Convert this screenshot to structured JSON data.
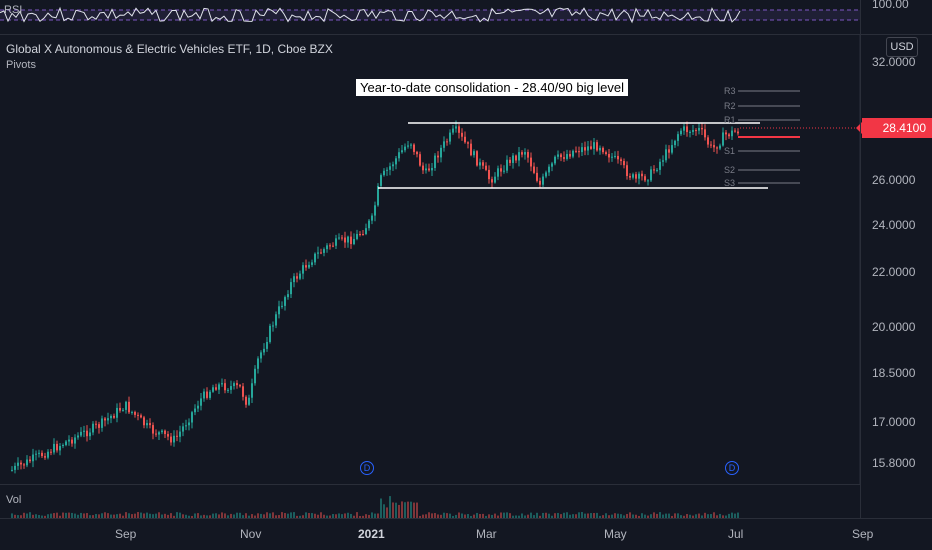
{
  "header": {
    "rsi_label": "RSI",
    "rsi_axis_label": "100.00",
    "symbol_title": "Global X Autonomous & Electric Vehicles ETF, 1D, Cboe BZX",
    "pivots_label": "Pivots",
    "currency_button": "USD"
  },
  "annotation": {
    "text": "Year-to-date consolidation - 28.40/90 big level"
  },
  "price_axis": {
    "ticks": [
      "32.0000",
      "26.0000",
      "24.0000",
      "22.0000",
      "20.0000",
      "18.5000",
      "17.0000",
      "15.8000"
    ],
    "current_price": "28.4100"
  },
  "pivot_levels": {
    "labels": [
      "R3",
      "R2",
      "R1",
      "P",
      "S1",
      "S2",
      "S3"
    ]
  },
  "dividend_markers": [
    "D",
    "D"
  ],
  "volume": {
    "label": "Vol"
  },
  "time_axis": {
    "labels": [
      "Sep",
      "Nov",
      "2021",
      "Mar",
      "May",
      "Jul",
      "Sep"
    ]
  },
  "colors": {
    "background": "#131722",
    "up_candle": "#26a69a",
    "down_candle": "#ef5350",
    "current_price_line": "#f23645",
    "rsi_line": "#e0e3eb",
    "rsi_band": "#7e57c2",
    "dividend_marker": "#2962ff",
    "annotation_line": "#ffffff"
  }
}
